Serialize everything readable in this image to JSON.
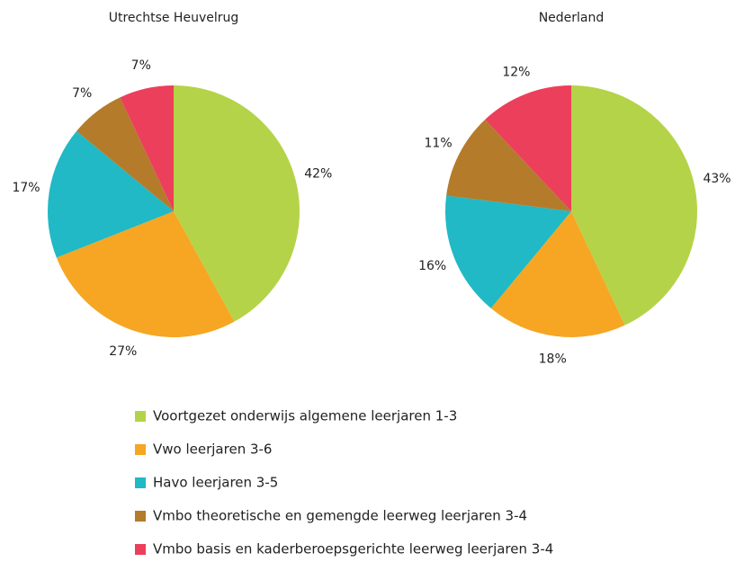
{
  "chart_data": [
    {
      "type": "pie",
      "title": "Utrechtse Heuvelrug",
      "values": [
        42,
        27,
        17,
        7,
        7
      ],
      "value_labels": [
        "42%",
        "27%",
        "17%",
        "7%",
        "7%"
      ]
    },
    {
      "type": "pie",
      "title": "Nederland",
      "values": [
        43,
        18,
        16,
        11,
        12
      ],
      "value_labels": [
        "43%",
        "18%",
        "16%",
        "11%",
        "12%"
      ]
    }
  ],
  "legend": {
    "categories": [
      "Voortgezet onderwijs algemene leerjaren 1-3",
      "Vwo leerjaren 3-6",
      "Havo leerjaren 3-5",
      "Vmbo theoretische en gemengde leerweg leerjaren 3-4",
      "Vmbo basis en kaderberoepsgerichte leerweg leerjaren 3-4"
    ],
    "colors": [
      "#b5d348",
      "#f6a623",
      "#20b9c5",
      "#b47b2b",
      "#ec3f5b"
    ]
  }
}
